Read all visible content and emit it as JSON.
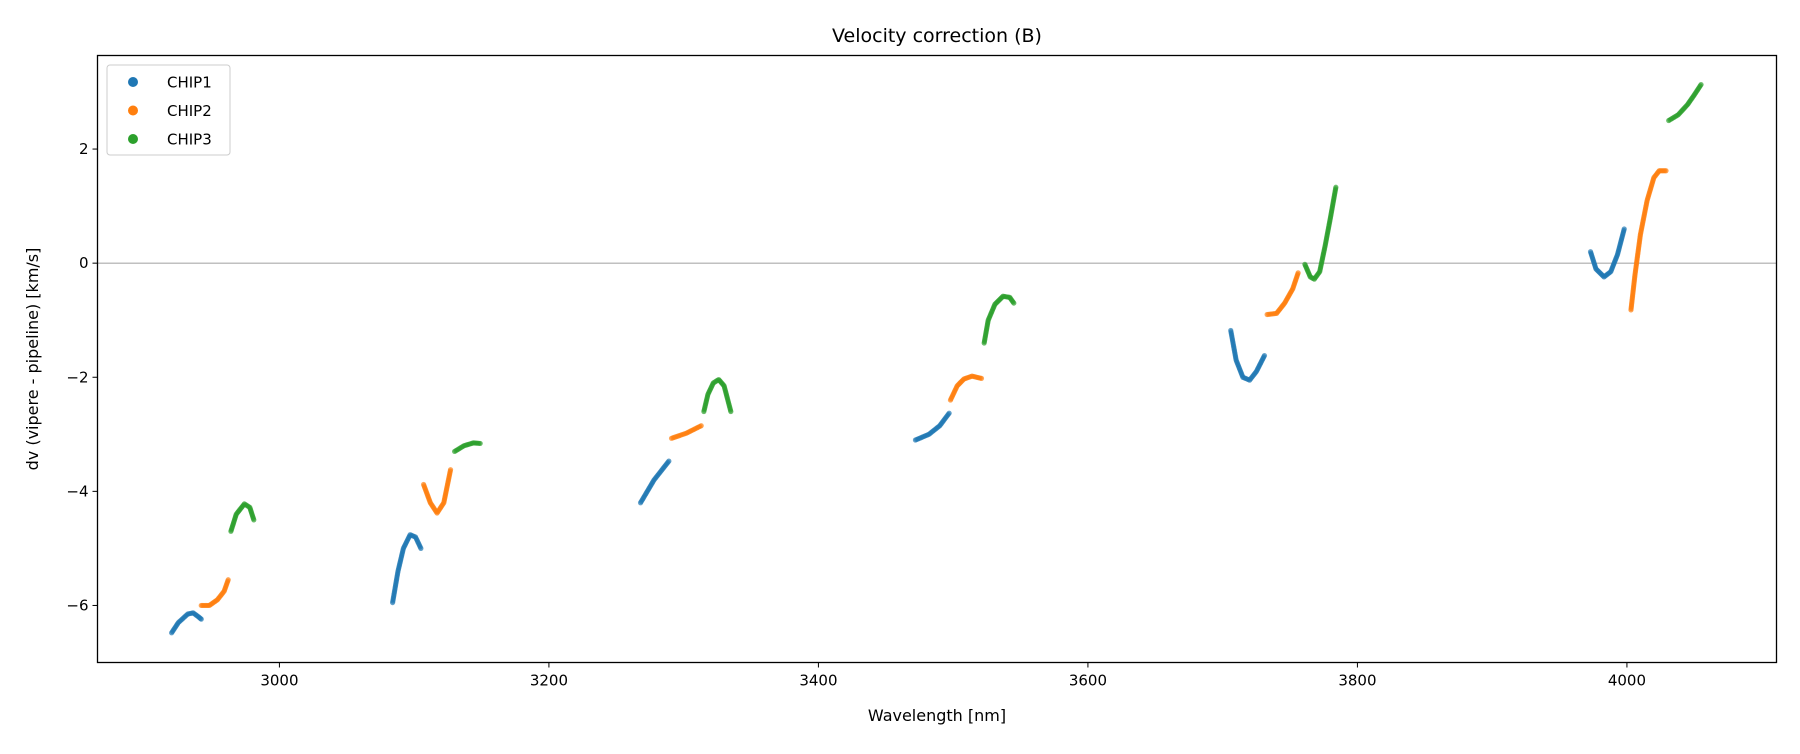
{
  "chart_data": {
    "type": "scatter",
    "title": "Velocity correction (B)",
    "xlabel": "Wavelength [nm]",
    "ylabel": "dv (vipere - pipeline) [km/s]",
    "xlim": [
      2865,
      4111
    ],
    "ylim": [
      -7.0,
      3.64
    ],
    "xticks": [
      3000,
      3200,
      3400,
      3600,
      3800,
      4000
    ],
    "yticks": [
      -6,
      -4,
      -2,
      0,
      2
    ],
    "xtick_labels": [
      "3000",
      "3200",
      "3400",
      "3600",
      "3800",
      "4000"
    ],
    "ytick_labels": [
      "−6",
      "−4",
      "−2",
      "0",
      "2"
    ],
    "hline": 0,
    "legend_placement": "top-left",
    "series": [
      {
        "name": "CHIP1",
        "color": "#1f77b4",
        "segments": [
          [
            [
              2920,
              -6.48
            ],
            [
              2925,
              -6.3
            ],
            [
              2932,
              -6.15
            ],
            [
              2936,
              -6.13
            ],
            [
              2940,
              -6.2
            ],
            [
              2942,
              -6.24
            ]
          ],
          [
            [
              3084,
              -5.95
            ],
            [
              3088,
              -5.4
            ],
            [
              3092,
              -5.0
            ],
            [
              3097,
              -4.76
            ],
            [
              3101,
              -4.8
            ],
            [
              3105,
              -5.0
            ]
          ],
          [
            [
              3268,
              -4.2
            ],
            [
              3278,
              -3.8
            ],
            [
              3289,
              -3.47
            ]
          ],
          [
            [
              3472,
              -3.1
            ],
            [
              3482,
              -3.0
            ],
            [
              3490,
              -2.85
            ],
            [
              3497,
              -2.63
            ]
          ],
          [
            [
              3706,
              -1.18
            ],
            [
              3710,
              -1.7
            ],
            [
              3715,
              -2.0
            ],
            [
              3720,
              -2.05
            ],
            [
              3725,
              -1.9
            ],
            [
              3731,
              -1.62
            ]
          ],
          [
            [
              3973,
              0.2
            ],
            [
              3977,
              -0.1
            ],
            [
              3983,
              -0.24
            ],
            [
              3988,
              -0.15
            ],
            [
              3993,
              0.15
            ],
            [
              3998,
              0.6
            ]
          ]
        ]
      },
      {
        "name": "CHIP2",
        "color": "#ff7f0e",
        "segments": [
          [
            [
              2942,
              -6.0
            ],
            [
              2948,
              -6.0
            ],
            [
              2954,
              -5.9
            ],
            [
              2959,
              -5.75
            ],
            [
              2962,
              -5.55
            ]
          ],
          [
            [
              3107,
              -3.88
            ],
            [
              3112,
              -4.2
            ],
            [
              3117,
              -4.38
            ],
            [
              3122,
              -4.2
            ],
            [
              3127,
              -3.62
            ]
          ],
          [
            [
              3291,
              -3.07
            ],
            [
              3302,
              -2.98
            ],
            [
              3313,
              -2.85
            ]
          ],
          [
            [
              3498,
              -2.4
            ],
            [
              3503,
              -2.15
            ],
            [
              3508,
              -2.03
            ],
            [
              3514,
              -1.98
            ],
            [
              3521,
              -2.02
            ]
          ],
          [
            [
              3733,
              -0.9
            ],
            [
              3740,
              -0.88
            ],
            [
              3746,
              -0.7
            ],
            [
              3752,
              -0.45
            ],
            [
              3756,
              -0.17
            ]
          ],
          [
            [
              4003,
              -0.82
            ],
            [
              4006,
              -0.2
            ],
            [
              4010,
              0.5
            ],
            [
              4015,
              1.1
            ],
            [
              4020,
              1.5
            ],
            [
              4024,
              1.62
            ],
            [
              4029,
              1.62
            ]
          ]
        ]
      },
      {
        "name": "CHIP3",
        "color": "#2ca02c",
        "segments": [
          [
            [
              2964,
              -4.7
            ],
            [
              2968,
              -4.4
            ],
            [
              2974,
              -4.22
            ],
            [
              2978,
              -4.28
            ],
            [
              2981,
              -4.5
            ]
          ],
          [
            [
              3130,
              -3.3
            ],
            [
              3137,
              -3.2
            ],
            [
              3144,
              -3.15
            ],
            [
              3149,
              -3.16
            ]
          ],
          [
            [
              3315,
              -2.6
            ],
            [
              3318,
              -2.3
            ],
            [
              3322,
              -2.1
            ],
            [
              3326,
              -2.04
            ],
            [
              3330,
              -2.15
            ],
            [
              3335,
              -2.6
            ]
          ],
          [
            [
              3523,
              -1.4
            ],
            [
              3526,
              -1.0
            ],
            [
              3531,
              -0.72
            ],
            [
              3537,
              -0.58
            ],
            [
              3542,
              -0.6
            ],
            [
              3545,
              -0.7
            ]
          ],
          [
            [
              3761,
              -0.02
            ],
            [
              3765,
              -0.24
            ],
            [
              3768,
              -0.28
            ],
            [
              3772,
              -0.15
            ],
            [
              3776,
              0.3
            ],
            [
              3780,
              0.8
            ],
            [
              3784,
              1.33
            ]
          ],
          [
            [
              4031,
              2.5
            ],
            [
              4038,
              2.6
            ],
            [
              4045,
              2.78
            ],
            [
              4050,
              2.95
            ],
            [
              4055,
              3.13
            ]
          ]
        ]
      }
    ]
  }
}
